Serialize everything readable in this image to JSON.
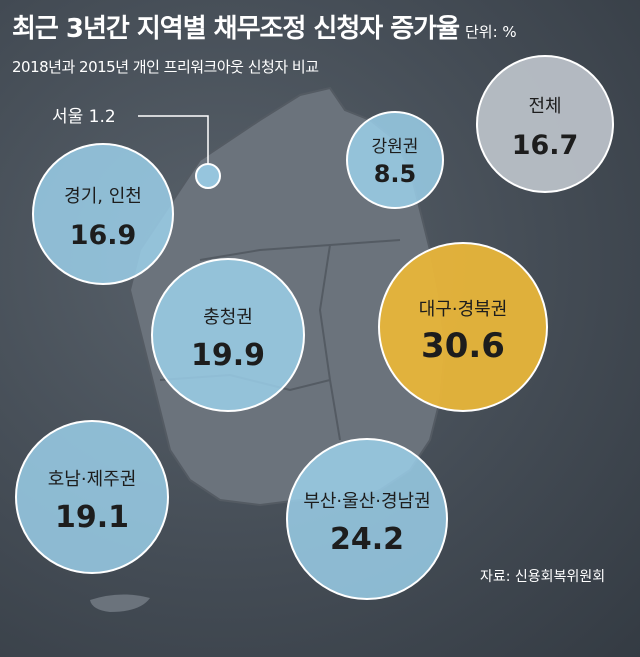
{
  "header": {
    "title": "최근 3년간 지역별 채무조정 신청자 증가율",
    "unit": "단위: %",
    "subtitle": "2018년과 2015년 개인 프리워크아웃 신청자 비교"
  },
  "source": "자료: 신용회복위원회",
  "colors": {
    "bubble_blue": "#9dd3ee",
    "bubble_gray": "#b9c0c7",
    "bubble_highlight": "#e8b53a",
    "map": "#6b737c"
  },
  "chart_data": {
    "type": "bubble",
    "title": "최근 3년간 지역별 채무조정 신청자 증가율",
    "unit": "%",
    "series": [
      {
        "region": "서울",
        "value": 1.2,
        "label_text": "서울  1.2",
        "style": "blue-callout"
      },
      {
        "region": "경기, 인천",
        "value": 16.9,
        "style": "blue"
      },
      {
        "region": "강원권",
        "value": 8.5,
        "style": "blue"
      },
      {
        "region": "전체",
        "value": 16.7,
        "style": "gray"
      },
      {
        "region": "충청권",
        "value": 19.9,
        "style": "blue"
      },
      {
        "region": "대구·경북권",
        "value": 30.6,
        "style": "highlight"
      },
      {
        "region": "호남·제주권",
        "value": 19.1,
        "style": "blue"
      },
      {
        "region": "부산·울산·경남권",
        "value": 24.2,
        "style": "blue"
      }
    ]
  }
}
